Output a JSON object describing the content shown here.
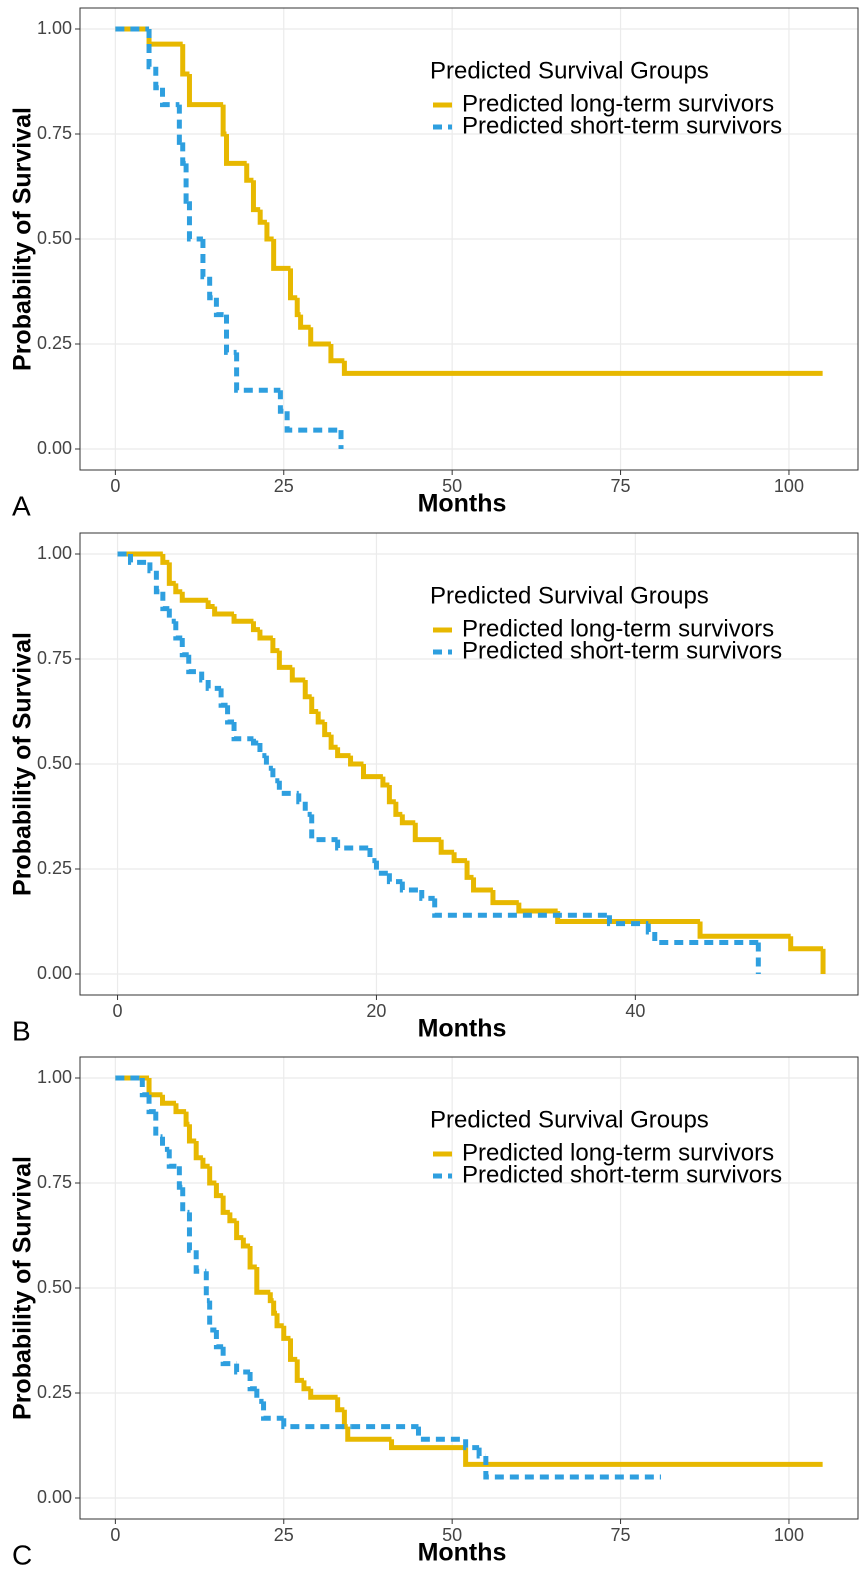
{
  "chart_data": [
    {
      "type": "step",
      "panel_label": "A",
      "x_label": "Months",
      "y_label": "Probability of Survival",
      "legend_title": "Predicted Survival Groups",
      "xlim": [
        -5.25,
        110.25
      ],
      "ylim": [
        -0.05,
        1.05
      ],
      "xticks": [
        0,
        25,
        50,
        75,
        100
      ],
      "yticks": [
        {
          "value": 0,
          "label": "0.00"
        },
        {
          "value": 0.25,
          "label": "0.25"
        },
        {
          "value": 0.5,
          "label": "0.50"
        },
        {
          "value": 0.75,
          "label": "0.75"
        },
        {
          "value": 1,
          "label": "1.00"
        }
      ],
      "grid": true,
      "series": [
        {
          "name": "Predicted long-term survivors",
          "color": "#E7B800",
          "dashed": false,
          "x": [
            0,
            5,
            10,
            11,
            16,
            16.5,
            19.5,
            20.5,
            21.5,
            22.5,
            23.5,
            26,
            27,
            27.5,
            29,
            32,
            34,
            105
          ],
          "values": [
            1,
            0.964,
            0.893,
            0.82,
            0.75,
            0.68,
            0.64,
            0.57,
            0.54,
            0.5,
            0.43,
            0.36,
            0.32,
            0.29,
            0.25,
            0.21,
            0.18,
            0.18
          ]
        },
        {
          "name": "Predicted short-term survivors",
          "color": "#2E9FDF",
          "dashed": true,
          "x": [
            0,
            5,
            6,
            7,
            9.5,
            10,
            10.5,
            11,
            13,
            14,
            15,
            16.5,
            18,
            24.5,
            25.5,
            33.5
          ],
          "values": [
            1,
            0.91,
            0.86,
            0.82,
            0.73,
            0.68,
            0.59,
            0.5,
            0.41,
            0.36,
            0.32,
            0.23,
            0.14,
            0.09,
            0.045,
            0.0
          ]
        }
      ]
    },
    {
      "type": "step",
      "panel_label": "B",
      "x_label": "Months",
      "y_label": "Probability of Survival",
      "legend_title": "Predicted Survival Groups",
      "xlim": [
        -2.9,
        57.2
      ],
      "ylim": [
        -0.05,
        1.05
      ],
      "xticks": [
        0,
        20,
        40
      ],
      "yticks": [
        {
          "value": 0,
          "label": "0.00"
        },
        {
          "value": 0.25,
          "label": "0.25"
        },
        {
          "value": 0.5,
          "label": "0.50"
        },
        {
          "value": 0.75,
          "label": "0.75"
        },
        {
          "value": 1,
          "label": "1.00"
        }
      ],
      "grid": true,
      "series": [
        {
          "name": "Predicted long-term survivors",
          "color": "#E7B800",
          "dashed": false,
          "x": [
            0,
            3.5,
            4,
            4.5,
            5,
            7,
            7.5,
            9,
            10.5,
            11,
            12,
            12.5,
            13.5,
            14.5,
            15,
            15.5,
            16,
            16.5,
            17,
            18,
            19,
            20.5,
            21,
            21.5,
            22,
            23,
            25,
            26,
            27,
            27.5,
            29,
            31,
            34,
            45,
            52,
            54.5
          ],
          "values": [
            1,
            0.98,
            0.93,
            0.91,
            0.89,
            0.875,
            0.857,
            0.84,
            0.82,
            0.8,
            0.77,
            0.73,
            0.7,
            0.66,
            0.625,
            0.6,
            0.57,
            0.54,
            0.52,
            0.5,
            0.47,
            0.45,
            0.41,
            0.38,
            0.36,
            0.32,
            0.29,
            0.27,
            0.23,
            0.2,
            0.17,
            0.15,
            0.125,
            0.09,
            0.06,
            0.0
          ]
        },
        {
          "name": "Predicted short-term survivors",
          "color": "#2E9FDF",
          "dashed": true,
          "x": [
            0,
            1,
            2.5,
            3,
            3.5,
            4,
            4.5,
            5,
            5.5,
            6.5,
            7,
            8,
            8.5,
            9,
            10.5,
            11,
            11.5,
            12,
            12.5,
            14,
            14.5,
            15,
            17,
            19.5,
            20,
            21,
            22,
            23.5,
            24.5,
            38,
            41,
            41.5,
            49.5
          ],
          "values": [
            1,
            0.98,
            0.96,
            0.91,
            0.87,
            0.84,
            0.8,
            0.76,
            0.72,
            0.7,
            0.68,
            0.64,
            0.6,
            0.56,
            0.55,
            0.52,
            0.49,
            0.46,
            0.43,
            0.41,
            0.38,
            0.32,
            0.3,
            0.27,
            0.24,
            0.22,
            0.2,
            0.18,
            0.14,
            0.12,
            0.1,
            0.075,
            0.0
          ]
        }
      ]
    },
    {
      "type": "step",
      "panel_label": "C",
      "x_label": "Months",
      "y_label": "Probability of Survival",
      "legend_title": "Predicted Survival Groups",
      "xlim": [
        -5.25,
        110.25
      ],
      "ylim": [
        -0.05,
        1.05
      ],
      "xticks": [
        0,
        25,
        50,
        75,
        100
      ],
      "yticks": [
        {
          "value": 0,
          "label": "0.00"
        },
        {
          "value": 0.25,
          "label": "0.25"
        },
        {
          "value": 0.5,
          "label": "0.50"
        },
        {
          "value": 0.75,
          "label": "0.75"
        },
        {
          "value": 1,
          "label": "1.00"
        }
      ],
      "grid": true,
      "series": [
        {
          "name": "Predicted long-term survivors",
          "color": "#E7B800",
          "dashed": false,
          "x": [
            0,
            5,
            7,
            9,
            10.5,
            11,
            12,
            13,
            14,
            15,
            16,
            17,
            18,
            19,
            20,
            21,
            23,
            23.5,
            24,
            25,
            26,
            27,
            28,
            29,
            33,
            34,
            34.5,
            41,
            52,
            105
          ],
          "values": [
            1,
            0.96,
            0.94,
            0.92,
            0.89,
            0.85,
            0.81,
            0.79,
            0.75,
            0.72,
            0.68,
            0.66,
            0.62,
            0.6,
            0.55,
            0.49,
            0.47,
            0.44,
            0.41,
            0.38,
            0.33,
            0.28,
            0.26,
            0.24,
            0.21,
            0.17,
            0.14,
            0.12,
            0.08,
            0.08
          ]
        },
        {
          "name": "Predicted short-term survivors",
          "color": "#2E9FDF",
          "dashed": true,
          "x": [
            0,
            4,
            5,
            6,
            7,
            8,
            9.5,
            10,
            11,
            12,
            13.5,
            14,
            15,
            16,
            18,
            20,
            21,
            22,
            25,
            35,
            45,
            52,
            54,
            55,
            81
          ],
          "values": [
            1,
            0.96,
            0.92,
            0.86,
            0.83,
            0.79,
            0.74,
            0.68,
            0.59,
            0.54,
            0.47,
            0.4,
            0.36,
            0.32,
            0.3,
            0.26,
            0.23,
            0.19,
            0.17,
            0.17,
            0.14,
            0.12,
            0.1,
            0.05,
            0.05
          ]
        }
      ]
    }
  ]
}
